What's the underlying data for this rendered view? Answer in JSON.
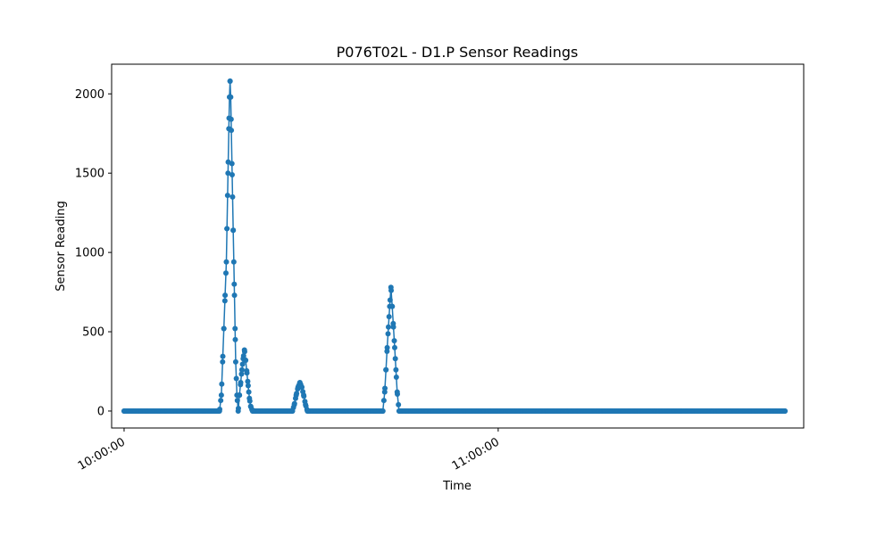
{
  "chart_data": {
    "type": "line",
    "title": "P076T02L - D1.P Sensor Readings",
    "xlabel": "Time",
    "ylabel": "Sensor Reading",
    "x_tick_labels": [
      "10:00:00",
      "11:00:00"
    ],
    "y_ticks": [
      0,
      500,
      1000,
      1500,
      2000
    ],
    "xlim_minutes": [
      -2,
      109
    ],
    "ylim": [
      -107,
      2187
    ],
    "grid": false,
    "marker": "circle",
    "series_color": "#1f77b4",
    "series": [
      {
        "points": [
          [
            0,
            0
          ],
          [
            15.3,
            0
          ],
          [
            15.6,
            100
          ],
          [
            15.8,
            310
          ],
          [
            16.0,
            520
          ],
          [
            16.2,
            730
          ],
          [
            16.4,
            940
          ],
          [
            16.5,
            1150
          ],
          [
            16.6,
            1360
          ],
          [
            16.7,
            1570
          ],
          [
            16.8,
            1780
          ],
          [
            16.9,
            1980
          ],
          [
            17.0,
            2080
          ],
          [
            17.1,
            1980
          ],
          [
            17.2,
            1770
          ],
          [
            17.3,
            1560
          ],
          [
            17.4,
            1350
          ],
          [
            17.5,
            1140
          ],
          [
            17.6,
            940
          ],
          [
            17.7,
            730
          ],
          [
            17.8,
            520
          ],
          [
            17.9,
            310
          ],
          [
            18.1,
            100
          ],
          [
            18.3,
            0
          ],
          [
            18.5,
            100
          ],
          [
            18.7,
            180
          ],
          [
            18.9,
            260
          ],
          [
            19.1,
            330
          ],
          [
            19.3,
            385
          ],
          [
            19.5,
            320
          ],
          [
            19.7,
            240
          ],
          [
            19.9,
            160
          ],
          [
            20.1,
            80
          ],
          [
            20.3,
            30
          ],
          [
            20.6,
            0
          ],
          [
            27.0,
            0
          ],
          [
            27.3,
            40
          ],
          [
            27.6,
            100
          ],
          [
            27.9,
            150
          ],
          [
            28.2,
            180
          ],
          [
            28.5,
            150
          ],
          [
            28.8,
            100
          ],
          [
            29.1,
            40
          ],
          [
            29.4,
            0
          ],
          [
            41.5,
            0
          ],
          [
            41.8,
            120
          ],
          [
            42.0,
            260
          ],
          [
            42.2,
            400
          ],
          [
            42.4,
            530
          ],
          [
            42.6,
            660
          ],
          [
            42.8,
            780
          ],
          [
            43.0,
            660
          ],
          [
            43.2,
            530
          ],
          [
            43.4,
            400
          ],
          [
            43.6,
            260
          ],
          [
            43.8,
            120
          ],
          [
            44.1,
            0
          ],
          [
            106.0,
            0
          ]
        ]
      }
    ]
  }
}
